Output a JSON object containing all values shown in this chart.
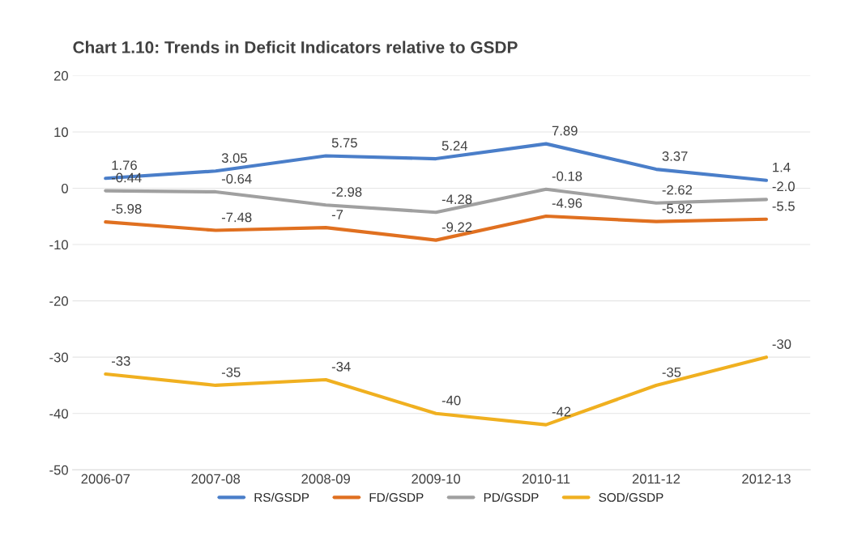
{
  "chart_data": {
    "type": "line",
    "title": "Chart 1.10: Trends in Deficit Indicators relative to GSDP",
    "categories": [
      "2006-07",
      "2007-08",
      "2008-09",
      "2009-10",
      "2010-11",
      "2011-12",
      "2012-13"
    ],
    "series": [
      {
        "name": "RS/GSDP",
        "color": "#4a7ec9",
        "values": [
          1.76,
          3.05,
          5.75,
          5.24,
          7.89,
          3.37,
          1.4
        ],
        "value_labels": [
          "1.76",
          "3.05",
          "5.75",
          "5.24",
          "7.89",
          "3.37",
          "1.4"
        ]
      },
      {
        "name": "FD/GSDP",
        "color": "#e07020",
        "values": [
          -5.98,
          -7.48,
          -7,
          -9.22,
          -4.96,
          -5.92,
          -5.5
        ],
        "value_labels": [
          "-5.98",
          "-7.48",
          "-7",
          "-9.22",
          "-4.96",
          "-5.92",
          "-5.5"
        ]
      },
      {
        "name": "PD/GSDP",
        "color": "#a0a0a0",
        "values": [
          -0.44,
          -0.64,
          -2.98,
          -4.28,
          -0.18,
          -2.62,
          -2.0
        ],
        "value_labels": [
          "-0.44",
          "-0.64",
          "-2.98",
          "-4.28",
          "-0.18",
          "-2.62",
          "-2.0"
        ]
      },
      {
        "name": "SOD/GSDP",
        "color": "#f0b020",
        "values": [
          -33,
          -35,
          -34,
          -40,
          -42,
          -35,
          -30
        ],
        "value_labels": [
          "-33",
          "-35",
          "-34",
          "-40",
          "-42",
          "-35",
          "-30"
        ]
      }
    ],
    "ylim": [
      -50,
      20
    ],
    "yticks": [
      -50,
      -40,
      -30,
      -20,
      -10,
      0,
      10,
      20
    ],
    "grid": "y",
    "legend": "bottom",
    "marker": "none",
    "line_style": "solid"
  }
}
